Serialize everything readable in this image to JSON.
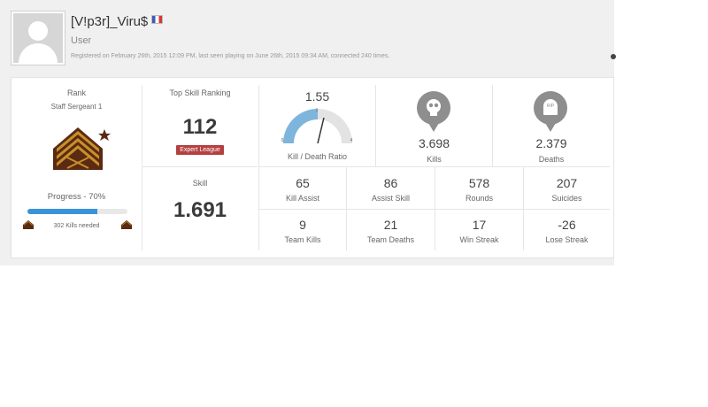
{
  "profile": {
    "username": "[V!p3r]_Viru$",
    "role": "User",
    "registration_line": "Registered on February 26th, 2015 12:09 PM, last seen playing on June 26th, 2015 09:34 AM, connected 240 times.",
    "flag_icon": "france-flag-icon"
  },
  "rank": {
    "heading": "Rank",
    "name": "Staff Sergeant 1",
    "progress_label": "Progress - 70%",
    "progress_fraction": 0.7,
    "kills_needed": "302 Kills needed",
    "insignia_icon": "staff-sergeant-insignia-icon"
  },
  "top_skill": {
    "heading": "Top Skill Ranking",
    "value": "112",
    "league": "Expert League"
  },
  "skill": {
    "heading": "Skill",
    "value": "1.691"
  },
  "kdr": {
    "value": "1.55",
    "label": "Kill / Death Ratio",
    "gauge_min": "0",
    "gauge_mid": "1",
    "gauge_max": "4"
  },
  "kills": {
    "value": "3.698",
    "label": "Kills",
    "icon": "skull-icon"
  },
  "deaths": {
    "value": "2.379",
    "label": "Deaths",
    "icon": "tombstone-rip-icon",
    "icon_text": "RIP"
  },
  "grid": [
    {
      "value": "65",
      "label": "Kill Assist"
    },
    {
      "value": "86",
      "label": "Assist Skill"
    },
    {
      "value": "578",
      "label": "Rounds"
    },
    {
      "value": "207",
      "label": "Suicides"
    },
    {
      "value": "9",
      "label": "Team Kills"
    },
    {
      "value": "21",
      "label": "Team Deaths"
    },
    {
      "value": "17",
      "label": "Win Streak"
    },
    {
      "value": "-26",
      "label": "Lose Streak"
    }
  ],
  "colors": {
    "accent": "#3a93d6",
    "league_badge": "#b44040",
    "insignia": "#c8902a",
    "insignia_dark": "#5a2a12"
  }
}
